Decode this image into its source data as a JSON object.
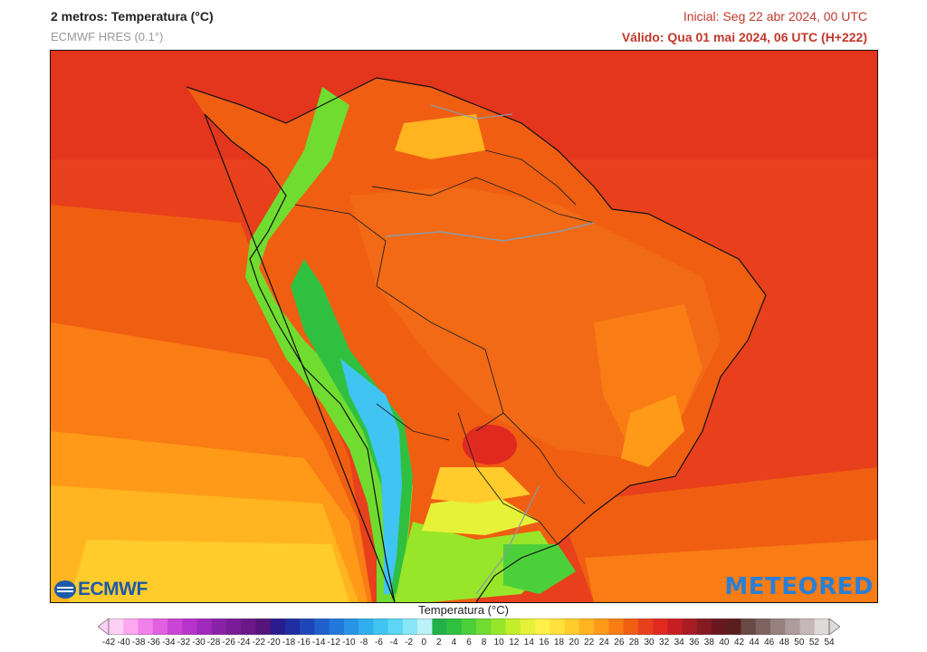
{
  "header": {
    "title": "2 metros: Temperatura (°C)",
    "model": "ECMWF HRES (0.1°)",
    "initial": "Inicial: Seg 22 abr 2024, 00 UTC",
    "valid": "Válido: Qua 01 mai 2024, 06 UTC (H+222)"
  },
  "map": {
    "region": "South America",
    "variable": "2 m temperature",
    "logos": {
      "ecmwf": "ECMWF",
      "meteored": "METEORED"
    }
  },
  "colorbar": {
    "title": "Temperatura (°C)",
    "ticks": [
      "-42",
      "-40",
      "-38",
      "-36",
      "-34",
      "-32",
      "-30",
      "-28",
      "-26",
      "-24",
      "-22",
      "-20",
      "-18",
      "-16",
      "-14",
      "-12",
      "-10",
      "-8",
      "-6",
      "-4",
      "-2",
      "0",
      "2",
      "4",
      "6",
      "8",
      "10",
      "12",
      "14",
      "16",
      "18",
      "20",
      "22",
      "24",
      "26",
      "28",
      "30",
      "32",
      "34",
      "36",
      "38",
      "40",
      "42",
      "44",
      "46",
      "48",
      "50",
      "52",
      "54"
    ],
    "colors": [
      "#ffd0f5",
      "#ffa8f0",
      "#f080ea",
      "#e060e0",
      "#cc44d6",
      "#b833cc",
      "#a02abb",
      "#8a22a8",
      "#7a1c96",
      "#6a1888",
      "#56147a",
      "#2a1c8c",
      "#1f2ea3",
      "#1f46b8",
      "#1f60cc",
      "#2178dd",
      "#2894e6",
      "#30aeee",
      "#40c4f2",
      "#5cd6f4",
      "#88e6f6",
      "#bdf2f8",
      "#22b04a",
      "#30c040",
      "#4cd03a",
      "#70dc30",
      "#98e62a",
      "#c2ee2a",
      "#e6f238",
      "#fff04a",
      "#ffe03c",
      "#ffcc2c",
      "#ffb420",
      "#ff9a18",
      "#f97c14",
      "#f05e12",
      "#e8401c",
      "#e02a20",
      "#c81e22",
      "#a81c24",
      "#861a22",
      "#6a1820",
      "#5a1e1e",
      "#6a4a46",
      "#7e6460",
      "#968080",
      "#ae9c9c",
      "#c6b8b8",
      "#dedad8"
    ]
  }
}
